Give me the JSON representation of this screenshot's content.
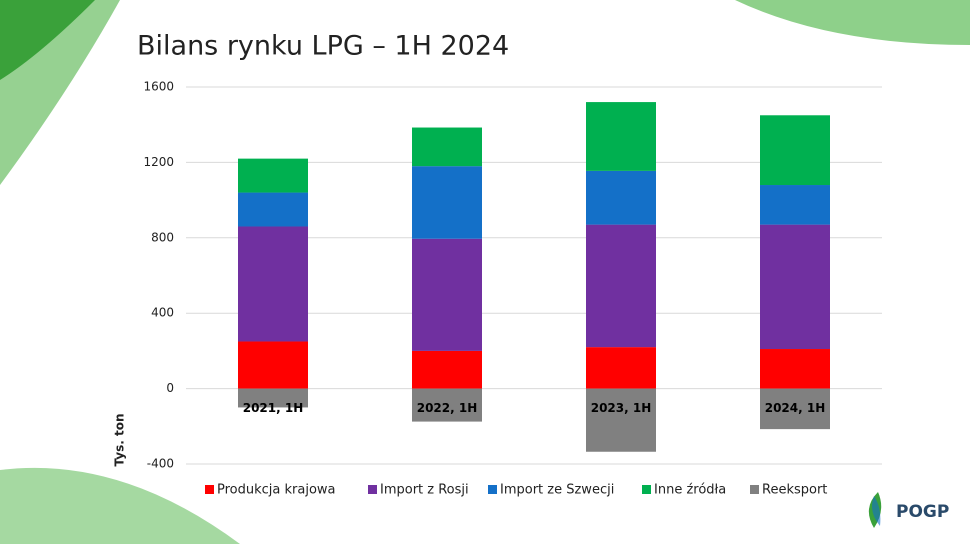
{
  "chart_data": {
    "type": "stacked_bar",
    "title": "Bilans rynku LPG – 1H 2024",
    "y_label": "Tys. ton",
    "categories": [
      "2021, 1H",
      "2022, 1H",
      "2023, 1H",
      "2024, 1H"
    ],
    "series": [
      {
        "name": "Produkcja krajowa",
        "color": "#ff0000",
        "values": [
          250,
          200,
          220,
          210
        ]
      },
      {
        "name": "Import z Rosji",
        "color": "#7030a0",
        "values": [
          610,
          595,
          650,
          660
        ]
      },
      {
        "name": "Import ze Szwecji",
        "color": "#1470c8",
        "values": [
          180,
          385,
          285,
          210
        ]
      },
      {
        "name": "Inne źródła",
        "color": "#00b050",
        "values": [
          180,
          205,
          365,
          370
        ]
      },
      {
        "name": "Reeksport",
        "color": "#808080",
        "values": [
          -100,
          -175,
          -335,
          -215
        ]
      }
    ],
    "ylim": [
      -400,
      1600
    ],
    "yticks": [
      -400,
      0,
      400,
      800,
      1200,
      1600
    ],
    "grid": true,
    "legend": "bottom"
  },
  "logo": {
    "text": "POGP"
  }
}
